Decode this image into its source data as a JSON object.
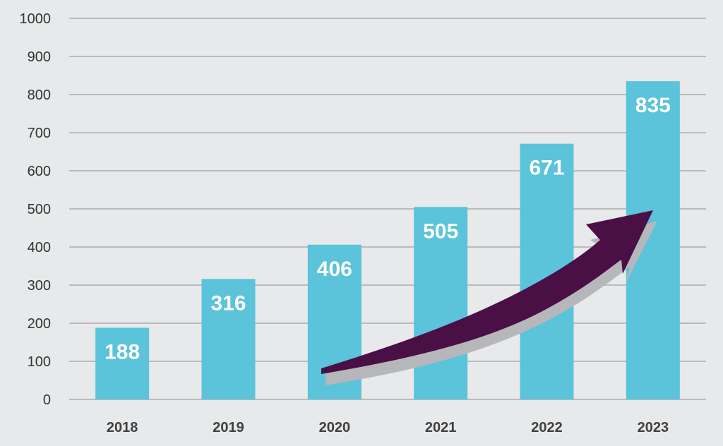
{
  "chart_data": {
    "type": "bar",
    "categories": [
      "2018",
      "2019",
      "2020",
      "2021",
      "2022",
      "2023"
    ],
    "values": [
      188,
      316,
      406,
      505,
      671,
      835
    ],
    "data_labels": [
      "188",
      "316",
      "406",
      "505",
      "671",
      "835"
    ],
    "title": "",
    "xlabel": "",
    "ylabel": "",
    "ylim": [
      0,
      1000
    ],
    "yticks": [
      "0",
      "100",
      "200",
      "300",
      "400",
      "500",
      "600",
      "700",
      "800",
      "900",
      "1000"
    ],
    "grid": true,
    "legend": "none",
    "bar_color": "#5bc3da",
    "label_color": "#ffffff",
    "arrow_color": "#4a0f45",
    "arrow_shadow_color": "#b6b7ba",
    "background": "#e7e9ea",
    "annotation": "trend-arrow"
  }
}
